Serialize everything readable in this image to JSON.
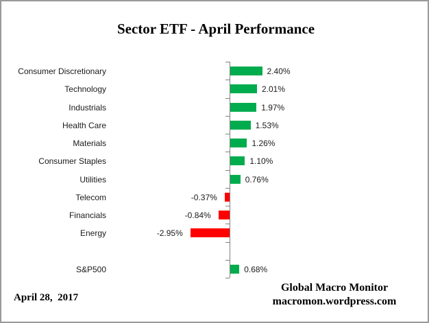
{
  "title": "Sector ETF - April Performance",
  "date": "April 28,  2017",
  "attribution": {
    "line1": "Global Macro Monitor",
    "line2": "macromon.wordpress.com"
  },
  "colors": {
    "positive": "#00AC4E",
    "negative": "#FF0000",
    "axis": "#808080",
    "frame": "#999999"
  },
  "chart_data": {
    "type": "bar",
    "orientation": "horizontal",
    "title": "Sector ETF - April Performance",
    "categories": [
      "Consumer Discretionary",
      "Technology",
      "Industrials",
      "Health Care",
      "Materials",
      "Consumer Staples",
      "Utilities",
      "Telecom",
      "Financials",
      "Energy",
      "S&P500"
    ],
    "values": [
      2.4,
      2.01,
      1.97,
      1.53,
      1.26,
      1.1,
      0.76,
      -0.37,
      -0.84,
      -2.95,
      0.68
    ],
    "value_labels": [
      "2.40%",
      "2.01%",
      "1.97%",
      "1.53%",
      "1.26%",
      "1.10%",
      "0.76%",
      "-0.37%",
      "-0.84%",
      "-2.95%",
      "0.68%"
    ],
    "separator_before_index": 10,
    "positive_color": "#00AC4E",
    "negative_color": "#FF0000",
    "xlabel": "",
    "ylabel": "",
    "xlim": [
      -3.5,
      3.5
    ],
    "grid": false,
    "legend": false,
    "value_unit": "percent"
  }
}
